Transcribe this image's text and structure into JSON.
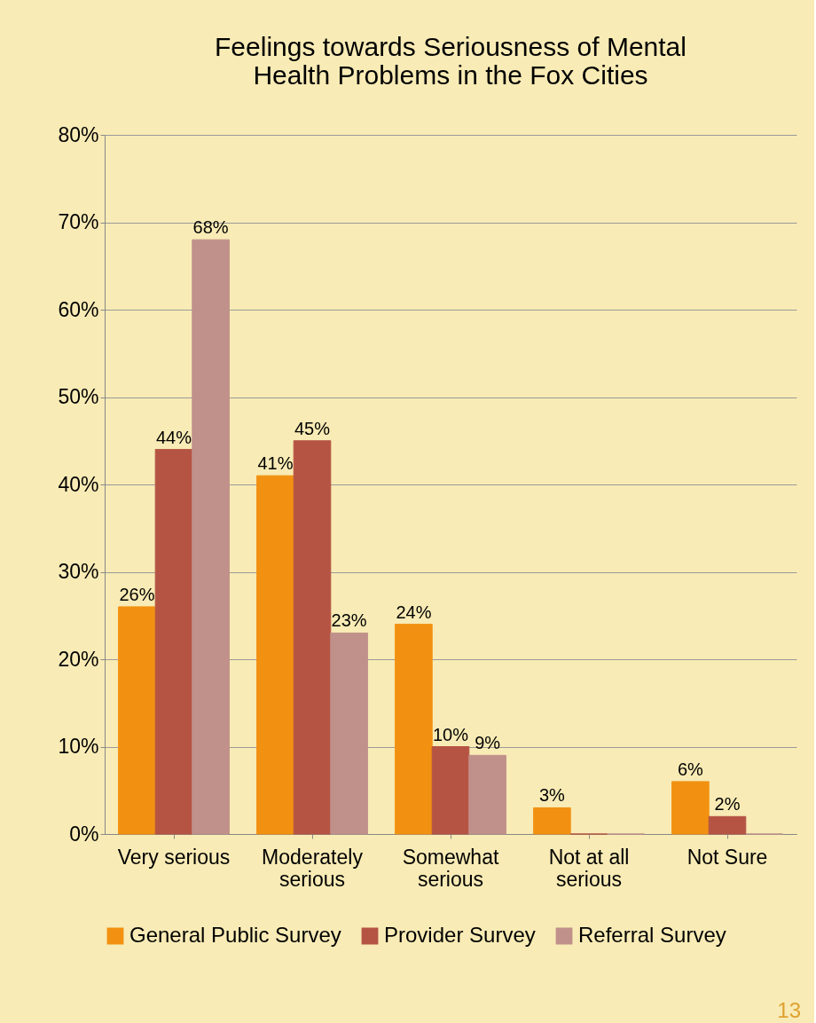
{
  "chart_data": {
    "type": "bar",
    "title": "Feelings towards Seriousness of Mental Health Problems in the Fox Cities",
    "categories": [
      "Very serious",
      "Moderately serious",
      "Somewhat serious",
      "Not at all serious",
      "Not Sure"
    ],
    "series": [
      {
        "name": "General Public Survey",
        "color": "#f29111",
        "values": [
          26,
          41,
          24,
          3,
          6
        ],
        "value_labels": [
          "26%",
          "41%",
          "24%",
          "3%",
          "6%"
        ]
      },
      {
        "name": "Provider Survey",
        "color": "#b65443",
        "values": [
          44,
          45,
          10,
          0,
          2
        ],
        "value_labels": [
          "44%",
          "45%",
          "10%",
          null,
          "2%"
        ]
      },
      {
        "name": "Referral Survey",
        "color": "#c0918a",
        "values": [
          68,
          23,
          9,
          0,
          0
        ],
        "value_labels": [
          "68%",
          "23%",
          "9%",
          null,
          null
        ]
      }
    ],
    "ylim": [
      0,
      80
    ],
    "yticks": [
      {
        "value": 0,
        "label": "0%"
      },
      {
        "value": 10,
        "label": "10%"
      },
      {
        "value": 20,
        "label": "20%"
      },
      {
        "value": 30,
        "label": "30%"
      },
      {
        "value": 40,
        "label": "40%"
      },
      {
        "value": 50,
        "label": "50%"
      },
      {
        "value": 60,
        "label": "60%"
      },
      {
        "value": 70,
        "label": "70%"
      },
      {
        "value": 80,
        "label": "80%"
      }
    ],
    "grid": "y",
    "legend": "bottom",
    "annotations": [
      "13"
    ]
  }
}
